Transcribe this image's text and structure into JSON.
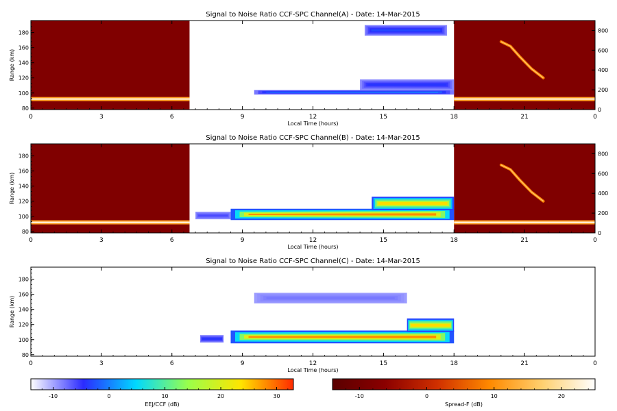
{
  "chart_data": [
    {
      "type": "heatmap",
      "title": "Signal to Noise Ratio CCF-SPC Channel(A) - Date: 14-Mar-2015",
      "xlabel": "Local Time (hours)",
      "ylabel": "Range (km)",
      "xlim": [
        0,
        24
      ],
      "ylim": [
        78,
        196
      ],
      "right_ylim": [
        0,
        900
      ],
      "x_ticks": [
        "0",
        "3",
        "6",
        "9",
        "12",
        "15",
        "18",
        "21",
        "0"
      ],
      "y_ticks": [
        "80",
        "100",
        "120",
        "140",
        "160",
        "180"
      ],
      "right_ticks": [
        "0",
        "200",
        "400",
        "600",
        "800"
      ],
      "spreadf_blocks": [
        [
          0,
          6.75
        ],
        [
          18,
          24
        ]
      ],
      "eej_features": [
        {
          "t0": 9.5,
          "t1": 18,
          "r0": 98,
          "r1": 104,
          "level": 0,
          "taper": 0.4
        },
        {
          "t0": 14,
          "t1": 18,
          "r0": 104,
          "r1": 118,
          "level": -4,
          "taper": 0.8
        },
        {
          "t0": 14.2,
          "t1": 17.7,
          "r0": 176,
          "r1": 190,
          "level": -3,
          "taper": 1
        }
      ],
      "sf_trace": [
        [
          20,
          168
        ],
        [
          20.4,
          162
        ],
        [
          20.8,
          148
        ],
        [
          21.3,
          132
        ],
        [
          21.8,
          120
        ]
      ]
    },
    {
      "type": "heatmap",
      "title": "Signal to Noise Ratio CCF-SPC Channel(B) - Date: 14-Mar-2015",
      "xlabel": "Local Time (hours)",
      "ylabel": "Range (km)",
      "xlim": [
        0,
        24
      ],
      "ylim": [
        78,
        196
      ],
      "right_ylim": [
        0,
        900
      ],
      "x_ticks": [
        "0",
        "3",
        "6",
        "9",
        "12",
        "15",
        "18",
        "21",
        "0"
      ],
      "y_ticks": [
        "80",
        "100",
        "120",
        "140",
        "160",
        "180"
      ],
      "right_ticks": [
        "0",
        "200",
        "400",
        "600",
        "800"
      ],
      "spreadf_blocks": [
        [
          0,
          6.75
        ],
        [
          18,
          24
        ]
      ],
      "eej_features": [
        {
          "t0": 7,
          "t1": 8.5,
          "r0": 96,
          "r1": 106,
          "level": -6,
          "taper": 1
        },
        {
          "t0": 8.5,
          "t1": 18,
          "r0": 95,
          "r1": 110,
          "level": 28,
          "taper": 0.5
        },
        {
          "t0": 14.5,
          "t1": 18,
          "r0": 108,
          "r1": 126,
          "level": 24,
          "taper": 1
        }
      ],
      "sf_trace": [
        [
          20,
          168
        ],
        [
          20.4,
          162
        ],
        [
          20.8,
          148
        ],
        [
          21.3,
          132
        ],
        [
          21.8,
          120
        ]
      ]
    },
    {
      "type": "heatmap",
      "title": "Signal to Noise Ratio CCF-SPC Channel(C) - Date: 14-Mar-2015",
      "xlabel": "Local Time (hours)",
      "ylabel": "Range (km)",
      "xlim": [
        0,
        24
      ],
      "ylim": [
        78,
        196
      ],
      "x_ticks": [
        "0",
        "3",
        "6",
        "9",
        "12",
        "15",
        "18",
        "21",
        "0"
      ],
      "y_ticks": [
        "80",
        "100",
        "120",
        "140",
        "160",
        "180"
      ],
      "spreadf_blocks": [],
      "eej_features": [
        {
          "t0": 7.2,
          "t1": 8.2,
          "r0": 96,
          "r1": 106,
          "level": -4,
          "taper": 1
        },
        {
          "t0": 8.5,
          "t1": 18,
          "r0": 95,
          "r1": 112,
          "level": 28,
          "taper": 0.5
        },
        {
          "t0": 16,
          "t1": 18,
          "r0": 110,
          "r1": 128,
          "level": 24,
          "taper": 1
        },
        {
          "t0": 9.5,
          "t1": 16,
          "r0": 148,
          "r1": 162,
          "level": -8,
          "taper": 1
        }
      ],
      "sf_trace": []
    }
  ],
  "colorbars": [
    {
      "label": "EEJ/CCF (dB)",
      "range": [
        -14,
        33
      ],
      "ticks": [
        -10,
        0,
        10,
        20,
        30
      ],
      "tick_labels": [
        "-10",
        "0",
        "10",
        "20",
        "30"
      ],
      "colors": [
        "#ffffff",
        "#2b2bff",
        "#00d8ff",
        "#9aff4a",
        "#ffe400",
        "#ff2a00"
      ]
    },
    {
      "label": "Spread-F (dB)",
      "range": [
        -14,
        25
      ],
      "ticks": [
        -10,
        0,
        10,
        20
      ],
      "tick_labels": [
        "-10",
        "0",
        "10",
        "20"
      ],
      "colors": [
        "#5a0000",
        "#8b0000",
        "#d03000",
        "#ff8a00",
        "#ffd070",
        "#ffffff"
      ]
    }
  ]
}
